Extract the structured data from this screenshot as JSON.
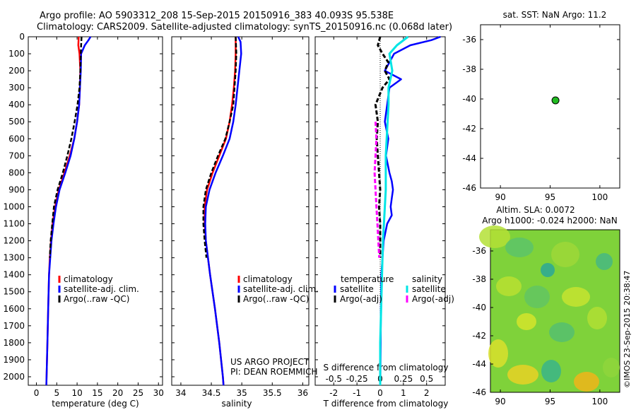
{
  "header": {
    "line1": "Argo profile: AO 5903312_208 15-Sep-2015 20150916_383 40.093S 95.538E",
    "line2": "Climatology: CARS2009. Satellite-adjusted climatology: synTS_20150916.nc (0.068d later)"
  },
  "sst_panel": {
    "title": "sat. SST: NaN Argo: 11.2",
    "yticks": [
      "-36",
      "-38",
      "-40",
      "-42",
      "-44",
      "-46"
    ],
    "xticks": [
      "90",
      "95",
      "100"
    ],
    "point": {
      "lon": 95.538,
      "lat": -40.093
    },
    "xlim": [
      88,
      102
    ],
    "ylim": [
      -46,
      -35
    ]
  },
  "sla_panel": {
    "title1": "Altim. SLA: 0.0072",
    "title2": "Argo h1000: -0.024 h2000: NaN",
    "yticks": [
      "-36",
      "-38",
      "-40",
      "-42",
      "-44",
      "-46"
    ],
    "xticks": [
      "90",
      "95",
      "100"
    ]
  },
  "credit": {
    "text": "©IMOS 23-Sep-2015 20:38:47"
  },
  "project": {
    "line1": "US ARGO PROJECT",
    "line2": "PI: DEAN ROEMMICH"
  },
  "colors": {
    "climatology": "#ff0000",
    "satellite": "#0000ff",
    "argo": "#000000",
    "sal_satellite": "#00e5e5",
    "sal_argo": "#ff00ff"
  },
  "chart_data": [
    {
      "type": "line",
      "xlabel": "temperature (deg C)",
      "xticks": [
        "0",
        "5",
        "10",
        "15",
        "20",
        "25",
        "30"
      ],
      "yticks": [
        "0",
        "100",
        "200",
        "300",
        "400",
        "500",
        "600",
        "700",
        "800",
        "900",
        "1000",
        "1100",
        "1200",
        "1300",
        "1400",
        "1500",
        "1600",
        "1700",
        "1800",
        "1900",
        "2000"
      ],
      "xlim": [
        -2,
        31
      ],
      "ylim": [
        2050,
        0
      ],
      "legend": [
        "climatology",
        "satellite-adj. clim.",
        "Argo(..raw -QC)"
      ],
      "series": [
        {
          "name": "climatology",
          "depth": [
            0,
            50,
            100,
            200,
            300,
            400,
            500,
            600,
            700,
            800,
            900,
            1000,
            1100,
            1200,
            1300,
            1400,
            1600,
            1800,
            2000,
            2050
          ],
          "values": [
            10.4,
            10.3,
            10.6,
            10.8,
            10.7,
            10.5,
            10.0,
            9.3,
            8.2,
            6.9,
            5.5,
            4.6,
            4.0,
            3.6,
            3.3,
            3.1,
            2.9,
            2.7,
            2.5,
            2.45
          ]
        },
        {
          "name": "satellite-adj. clim.",
          "depth": [
            0,
            20,
            50,
            100,
            200,
            300,
            400,
            500,
            600,
            700,
            800,
            900,
            1000,
            1100,
            1200,
            1300,
            1400,
            1600,
            1800,
            2000,
            2050
          ],
          "values": [
            13.3,
            12.8,
            11.9,
            11.0,
            10.9,
            10.7,
            10.5,
            10.0,
            9.3,
            8.4,
            7.1,
            5.7,
            4.8,
            4.2,
            3.7,
            3.4,
            3.1,
            2.9,
            2.7,
            2.5,
            2.45
          ]
        },
        {
          "name": "Argo(..raw -QC)",
          "depth": [
            0,
            50,
            100,
            200,
            300,
            400,
            500,
            600,
            700,
            800,
            900,
            1000,
            1100,
            1200,
            1300
          ],
          "values": [
            11.1,
            11.0,
            10.9,
            10.8,
            10.6,
            10.1,
            9.4,
            8.6,
            7.6,
            6.5,
            5.2,
            4.3,
            3.9,
            3.5,
            3.3
          ]
        }
      ]
    },
    {
      "type": "line",
      "xlabel": "salinity",
      "xticks": [
        "34",
        "34.5",
        "35",
        "35.5",
        "36"
      ],
      "xlim": [
        33.85,
        36.1
      ],
      "ylim": [
        2050,
        0
      ],
      "legend": [
        "climatology",
        "satellite-adj. clim.",
        "Argo(..raw -QC)"
      ],
      "series": [
        {
          "name": "climatology",
          "depth": [
            0,
            100,
            200,
            300,
            400,
            500,
            600,
            700,
            800,
            900,
            1000,
            1100,
            1200,
            1400,
            1600,
            1800,
            2000,
            2050
          ],
          "values": [
            34.9,
            34.9,
            34.89,
            34.87,
            34.84,
            34.8,
            34.74,
            34.63,
            34.52,
            34.43,
            34.39,
            34.39,
            34.41,
            34.48,
            34.56,
            34.63,
            34.69,
            34.7
          ]
        },
        {
          "name": "satellite-adj. clim.",
          "depth": [
            0,
            30,
            100,
            200,
            300,
            400,
            500,
            600,
            700,
            800,
            900,
            1000,
            1100,
            1200,
            1400,
            1600,
            1800,
            2000,
            2050
          ],
          "values": [
            34.94,
            34.98,
            34.99,
            34.96,
            34.93,
            34.9,
            34.86,
            34.8,
            34.69,
            34.57,
            34.47,
            34.41,
            34.4,
            34.41,
            34.48,
            34.56,
            34.63,
            34.69,
            34.7
          ]
        },
        {
          "name": "Argo(..raw -QC)",
          "depth": [
            0,
            100,
            200,
            300,
            400,
            500,
            600,
            700,
            800,
            900,
            1000,
            1100,
            1200,
            1300
          ],
          "values": [
            34.9,
            34.91,
            34.9,
            34.88,
            34.86,
            34.8,
            34.73,
            34.61,
            34.5,
            34.41,
            34.37,
            34.37,
            34.39,
            34.42
          ]
        }
      ]
    },
    {
      "type": "line",
      "xlabel": "T difference from climatology",
      "xlabel2": "S difference from climatology",
      "xticks": [
        "-2",
        "-1",
        "0",
        "1",
        "2"
      ],
      "xticks2": [
        "-0.5",
        "-0.25",
        "0",
        "0.25",
        "0.5"
      ],
      "xlim": [
        -2.8,
        2.8
      ],
      "ylim": [
        2050,
        0
      ],
      "legend_temperature": {
        "title": "temperature",
        "items": [
          "satellite",
          "Argo(-adj)"
        ]
      },
      "legend_salinity": {
        "title": "salinity",
        "items": [
          "satellite",
          "Argo(-adj)"
        ]
      },
      "series": [
        {
          "name": "satellite",
          "depth": [
            0,
            20,
            50,
            100,
            200,
            250,
            300,
            400,
            500,
            600,
            700,
            800,
            850,
            900,
            950,
            1000,
            1050,
            1100,
            1200,
            1300,
            1400,
            1600,
            1800,
            2000,
            2050
          ],
          "values": [
            2.6,
            2.2,
            1.3,
            0.6,
            0.2,
            0.9,
            0.4,
            0.3,
            0.2,
            0.35,
            0.25,
            0.4,
            0.5,
            0.55,
            0.5,
            0.45,
            0.5,
            0.3,
            0.15,
            0.1,
            0.05,
            0.03,
            0.02,
            0.01,
            0.0
          ]
        },
        {
          "name": "Argo(-adj)",
          "depth": [
            0,
            50,
            100,
            150,
            200,
            250,
            300,
            400,
            500,
            600,
            700,
            800,
            900,
            1000,
            1100,
            1200,
            1300
          ],
          "values": [
            0.0,
            -0.1,
            0.1,
            0.35,
            0.2,
            0.4,
            0.1,
            -0.2,
            -0.1,
            -0.15,
            -0.1,
            -0.05,
            0.0,
            -0.05,
            0.0,
            0.0,
            0.0
          ]
        },
        {
          "name": "satellite (salinity)",
          "depth": [
            0,
            50,
            100,
            200,
            300,
            400,
            500,
            600,
            700,
            800,
            900,
            1000,
            1100,
            1200,
            1400,
            1600,
            1800,
            2000,
            2050
          ],
          "values": [
            0.3,
            0.18,
            0.1,
            0.13,
            0.09,
            0.09,
            0.08,
            0.07,
            0.06,
            0.06,
            0.06,
            0.05,
            0.04,
            0.03,
            0.02,
            0.01,
            0.0,
            0.0,
            0.0
          ]
        },
        {
          "name": "Argo(-adj) (salinity)",
          "depth": [
            500,
            600,
            700,
            800,
            900,
            1000,
            1100,
            1200,
            1300
          ],
          "values": [
            -0.05,
            -0.04,
            -0.05,
            -0.06,
            -0.05,
            -0.04,
            -0.03,
            -0.02,
            -0.01
          ]
        }
      ]
    }
  ]
}
